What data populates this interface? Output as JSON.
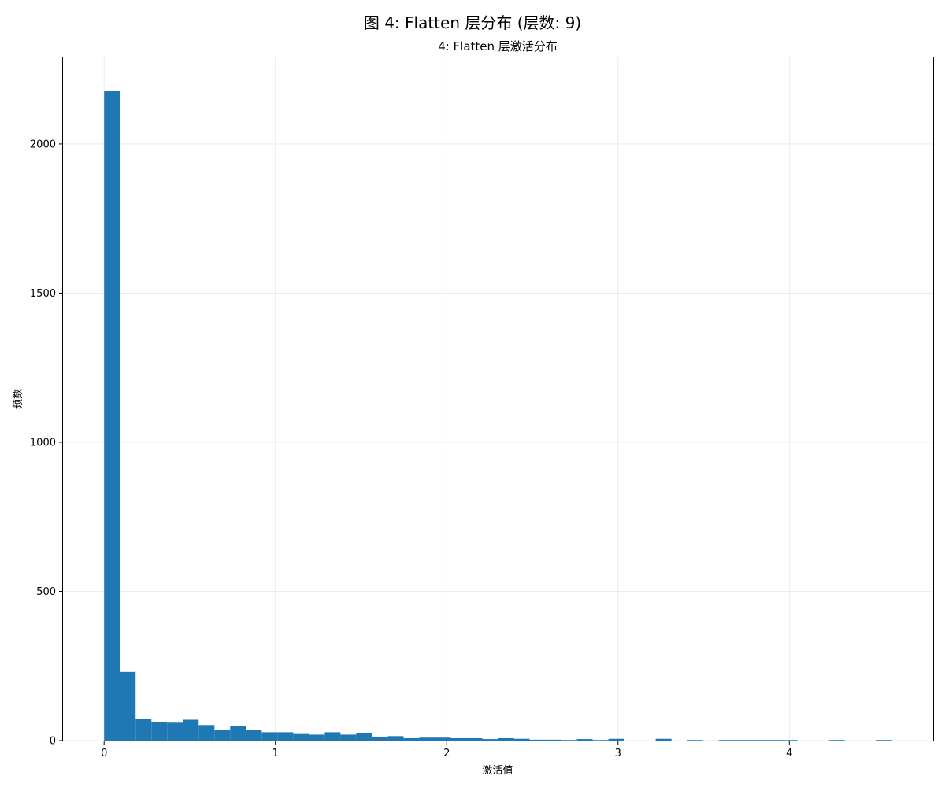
{
  "chart_data": {
    "type": "bar",
    "suptitle": "图 4: Flatten 层分布 (层数: 9)",
    "title": "4: Flatten 层激活分布",
    "xlabel": "激活值",
    "ylabel": "频数",
    "xlim": [
      -0.24,
      4.84
    ],
    "ylim": [
      0,
      2290
    ],
    "xticks": [
      0,
      1,
      2,
      3,
      4
    ],
    "yticks": [
      0,
      500,
      1000,
      1500,
      2000
    ],
    "grid": true,
    "bar_color": "#1f77b4",
    "bin_start": 0.0,
    "bin_width": 0.092,
    "values": [
      2178,
      230,
      72,
      63,
      60,
      70,
      52,
      35,
      50,
      35,
      28,
      28,
      22,
      20,
      28,
      20,
      25,
      12,
      15,
      8,
      10,
      10,
      8,
      8,
      5,
      8,
      6,
      3,
      3,
      2,
      5,
      2,
      6,
      0,
      0,
      6,
      0,
      2,
      0,
      2,
      2,
      2,
      2,
      2,
      0,
      0,
      2,
      0,
      0,
      2
    ]
  }
}
